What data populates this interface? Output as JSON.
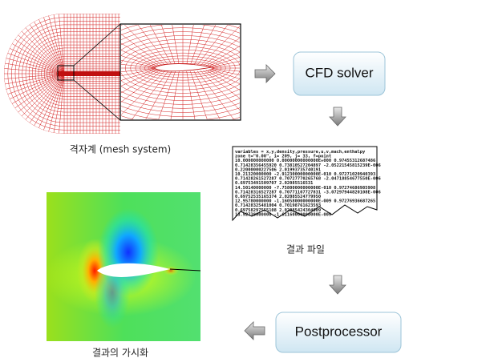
{
  "mesh": {
    "label": "격자계 (mesh system)"
  },
  "solver": {
    "label": "CFD solver"
  },
  "result_file": {
    "label": "결과 파일",
    "lines": [
      "variables = x,y,density,pressure,u,v,mach,enthalpy",
      "zone t=\"0.00\", i=      209, j=       33, f=point",
      "  10.000000000000  0.00000000000000E+000  0.97455312687486",
      "  0.71428356455920  0.73810527204897    -2.05221545815239E-006",
      "  0.22000000227506  2.01993735740191",
      "  10.21320000000  -2.91230000000000E-010  0.97271020940393",
      "  0.71428261527287  0.70727770265768    -2.04718854677550E-006",
      "  0.69753491509707  2.02085516531",
      "  14.50140000000  -7.75800000000000E-010  0.97274686985908",
      "  0.71428316527287  0.70771107727831    -3.07297944820108E-006",
      "  0.69752535165374  2.02085524779950",
      "  12.95780000000  -1.16058000000000E-009  0.97276936687265",
      "  0.71428325481004  0.70198761623593",
      "  0.69758297555108  2.02085424304009",
      "  13.92738000000  -1.61160000000000E-009"
    ]
  },
  "postprocessor": {
    "label": "Postprocessor"
  },
  "visualization": {
    "label": "결과의 가시화"
  }
}
